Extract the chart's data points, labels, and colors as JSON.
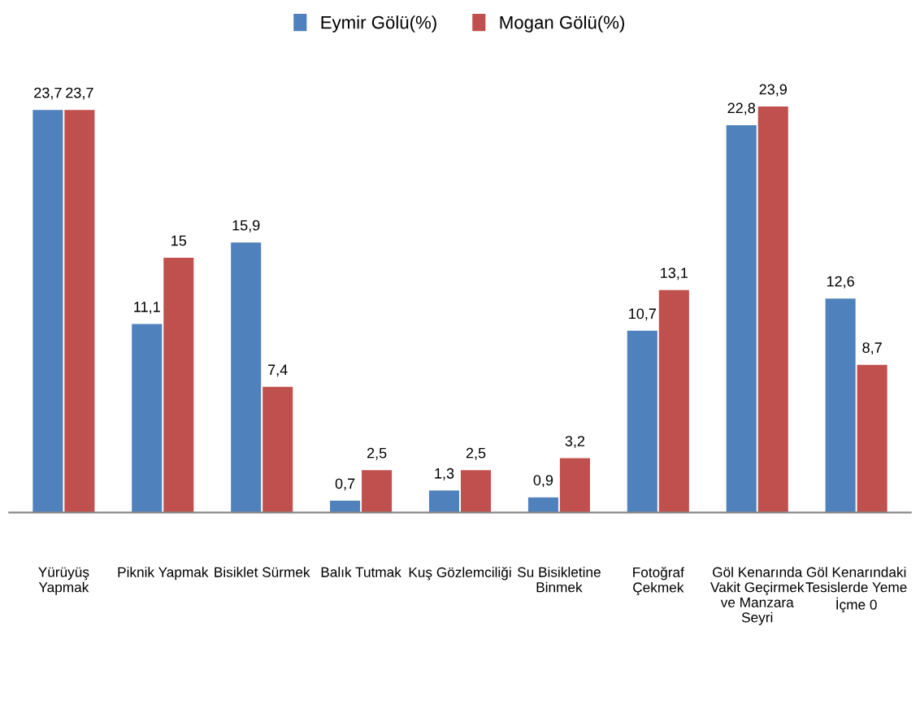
{
  "chart_data": {
    "type": "bar",
    "categories": [
      "Yürüyüş\nYapmak",
      "Piknik Yapmak",
      "Bisiklet Sürmek",
      "Balık Tutmak",
      "Kuş Gözlemciliği",
      "Su Bisikletine\nBinmek",
      "Fotoğraf\nÇekmek",
      "Göl Kenarında\nVakit Geçirmek\nve Manzara\nSeyri",
      "Göl Kenarındaki\nTesislerde Yeme\nİçme 0"
    ],
    "series": [
      {
        "name": "Eymir Gölü(%)",
        "color": "#4f81bd",
        "values": [
          23.7,
          11.1,
          15.9,
          0.7,
          1.3,
          0.9,
          10.7,
          22.8,
          12.6
        ],
        "value_labels": [
          "23,7",
          "11,1",
          "15,9",
          "0,7",
          "1,3",
          "0,9",
          "10,7",
          "22,8",
          "12,6"
        ]
      },
      {
        "name": "Mogan Gölü(%)",
        "color": "#c0504d",
        "values": [
          23.7,
          15,
          7.4,
          2.5,
          2.5,
          3.2,
          13.1,
          23.9,
          8.7
        ],
        "value_labels": [
          "23,7",
          "15",
          "7,4",
          "2,5",
          "2,5",
          "3,2",
          "13,1",
          "23,9",
          "8,7"
        ]
      }
    ],
    "legend": "top",
    "grid": false
  }
}
